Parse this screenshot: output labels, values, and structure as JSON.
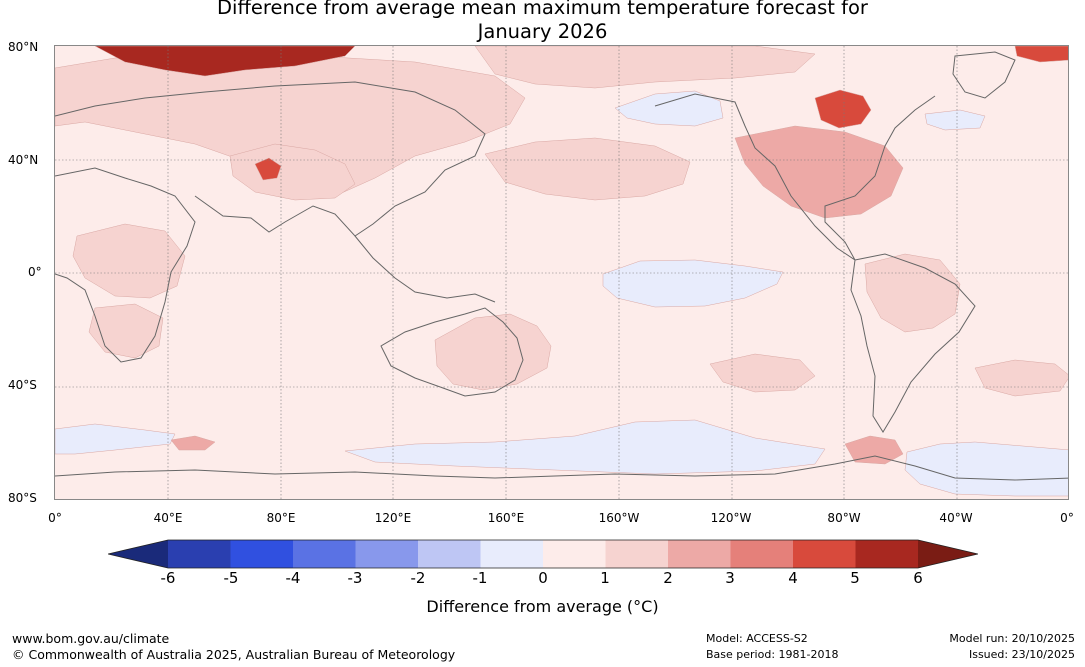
{
  "title": {
    "line1": "Difference from average mean maximum temperature forecast for",
    "line2": "January 2026"
  },
  "axes": {
    "lat_labels": [
      "80°N",
      "40°N",
      "0°",
      "40°S",
      "80°S"
    ],
    "lon_labels": [
      "0°",
      "40°E",
      "80°E",
      "120°E",
      "160°E",
      "160°W",
      "120°W",
      "80°W",
      "40°W",
      "0°"
    ]
  },
  "colorbar": {
    "title": "Difference from average (°C)",
    "ticks": [
      "-6",
      "-5",
      "-4",
      "-3",
      "-2",
      "-1",
      "0",
      "1",
      "2",
      "3",
      "4",
      "5",
      "6"
    ],
    "colors": [
      "#1a2a7a",
      "#2a3fb0",
      "#3050e0",
      "#5a72e4",
      "#8898ec",
      "#bec6f4",
      "#e8ecfc",
      "#fdecea",
      "#f6d3d0",
      "#eda9a6",
      "#e5807a",
      "#d84a3c",
      "#a82820",
      "#7a1c14"
    ]
  },
  "footer": {
    "url": "www.bom.gov.au/climate",
    "copyright": "© Commonwealth of Australia 2025, Australian Bureau of Meteorology",
    "model": "Model: ACCESS-S2",
    "base_period": "Base period: 1981-2018",
    "model_run": "Model run: 20/10/2025",
    "issued": "Issued: 23/10/2025"
  },
  "map_data": {
    "projection": "equirectangular",
    "lon_range": [
      0,
      360
    ],
    "lat_range": [
      -80,
      80
    ],
    "regions": [
      {
        "name": "southern-ocean-west-cool",
        "anomaly": -0.5
      },
      {
        "name": "eastern-equatorial-pacific-cool",
        "anomaly": -0.5
      },
      {
        "name": "southern-ocean-central-cool",
        "anomaly": -0.5
      },
      {
        "name": "southern-ocean-atlantic-cool",
        "anomaly": -0.5
      },
      {
        "name": "north-pacific-cool",
        "anomaly": -0.5
      },
      {
        "name": "eurasia-warm",
        "anomaly": 1.5
      },
      {
        "name": "north-africa-warm",
        "anomaly": 1.5
      },
      {
        "name": "southern-africa-warm",
        "anomaly": 1.5
      },
      {
        "name": "australia-warm",
        "anomaly": 1.5
      },
      {
        "name": "north-west-pacific-warm",
        "anomaly": 1.5
      },
      {
        "name": "north-america-warm",
        "anomaly": 2.5
      },
      {
        "name": "south-america-warm",
        "anomaly": 1.5
      },
      {
        "name": "canada-hotspot",
        "anomaly": 4.5
      },
      {
        "name": "tibet-hotspot",
        "anomaly": 4.5
      },
      {
        "name": "arctic-siberia-hot",
        "anomaly": 5.5
      },
      {
        "name": "antarctic-peninsula-warm",
        "anomaly": 2.5
      }
    ]
  }
}
